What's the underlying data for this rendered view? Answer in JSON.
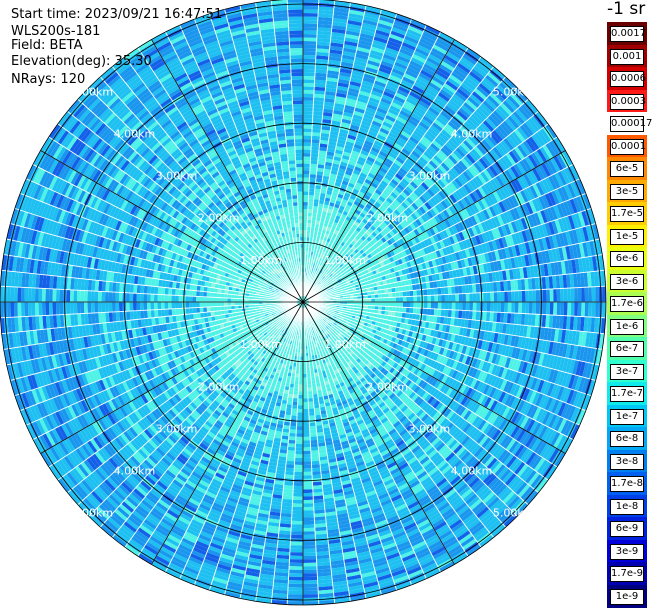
{
  "header": {
    "start_time": "Start time: 2023/09/21 16:47:51",
    "instrument": "WLS200s-181",
    "field": "Field: BETA",
    "elevation": "Elevation(deg): 35.30",
    "nrays": "NRays: 120"
  },
  "colorbar": {
    "units": "-1 sr",
    "labels": [
      "0.0017",
      "0.001",
      "0.0006",
      "0.0003",
      "0.00017",
      "0.0001",
      "6e-5",
      "3e-5",
      "1.7e-5",
      "1e-5",
      "6e-6",
      "3e-6",
      "1.7e-6",
      "1e-6",
      "6e-7",
      "3e-7",
      "1.7e-7",
      "1e-7",
      "6e-8",
      "3e-8",
      "1.7e-8",
      "1e-8",
      "6e-9",
      "3e-9",
      "1.7e-9",
      "1e-9"
    ],
    "colors": [
      "#6a0000",
      "#a00000",
      "#d40000",
      "#ff1a1a",
      "#ffffff",
      "#ff5a00",
      "#ff8800",
      "#ffaa00",
      "#ffcc00",
      "#fff000",
      "#eaff10",
      "#ccff30",
      "#aaff50",
      "#80ff80",
      "#50ffaa",
      "#30ffd0",
      "#10ecec",
      "#00c8f5",
      "#00a8f5",
      "#0080f0",
      "#0060f0",
      "#0040e8",
      "#0020e0",
      "#0000d8",
      "#0000b0",
      "#000080"
    ]
  },
  "range_labels": [
    "1.00km",
    "2.00km",
    "3.00km",
    "4.00km",
    "5.00km"
  ],
  "plot": {
    "nrays": 120,
    "max_range_km": 5.0,
    "ring_step_km": 1.0,
    "spoke_step_deg": 30,
    "colors": {
      "grid": "#000000",
      "ray_gap": "#ffffff",
      "range_label": "#ffffff",
      "near": "#4ff2e6",
      "mid": "#1ec0f2",
      "far": "#1a96ee",
      "dark": "#1560e8",
      "pale": "#8ff5e2"
    }
  }
}
